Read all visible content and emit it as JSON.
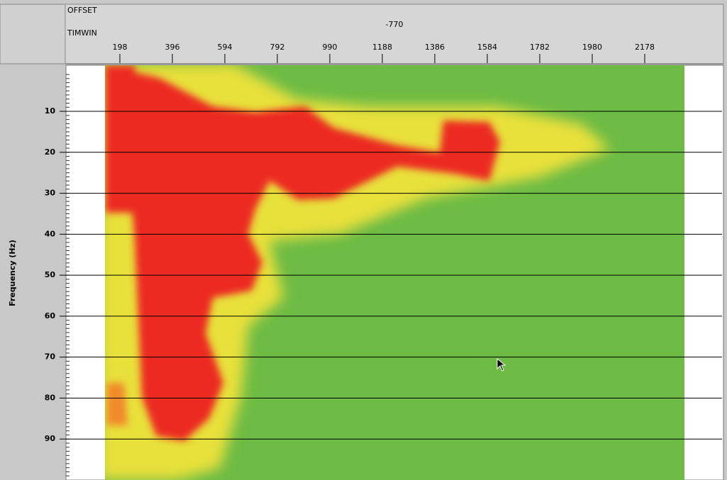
{
  "header": {
    "offset_label": "OFFSET",
    "timwin_label": "TIMWIN",
    "offset_value": "-770"
  },
  "axes": {
    "xticks": [
      198,
      396,
      594,
      792,
      990,
      1188,
      1386,
      1584,
      1782,
      1980,
      2178
    ],
    "xlim": [
      0,
      2475
    ],
    "yticks": [
      10,
      20,
      30,
      40,
      50,
      60,
      70,
      80,
      90
    ],
    "ylim": [
      0,
      100
    ],
    "ylabel": "Frequency (Hz)"
  }
}
